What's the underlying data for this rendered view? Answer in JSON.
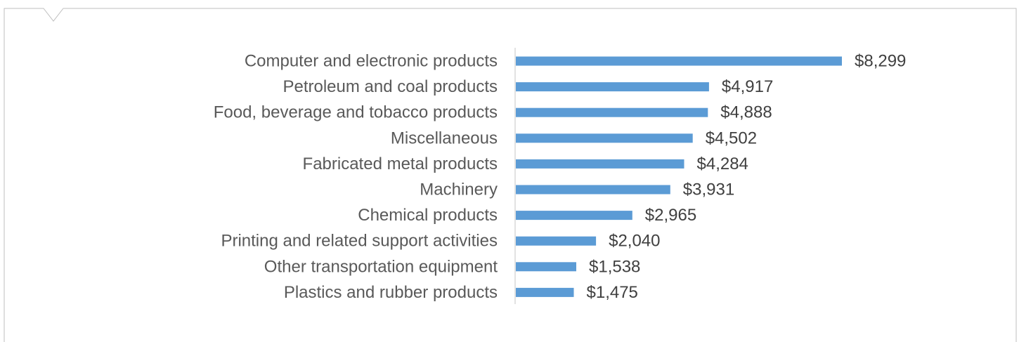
{
  "chart_data": {
    "type": "bar",
    "orientation": "horizontal",
    "categories": [
      "Computer and electronic products",
      "Petroleum and coal products",
      "Food, beverage and tobacco products",
      "Miscellaneous",
      "Fabricated metal products",
      "Machinery",
      "Chemical products",
      "Printing and related support activities",
      "Other transportation equipment",
      "Plastics and rubber products"
    ],
    "values": [
      8299,
      4917,
      4888,
      4502,
      4284,
      3931,
      2965,
      2040,
      1538,
      1475
    ],
    "value_labels": [
      "$8,299",
      "$4,917",
      "$4,888",
      "$4,502",
      "$4,284",
      "$3,931",
      "$2,965",
      "$2,040",
      "$1,538",
      "$1,475"
    ],
    "title": "",
    "xlabel": "",
    "ylabel": "",
    "xlim": [
      0,
      8299
    ],
    "grid": false,
    "legend": "none",
    "bar_color": "#5B9BD5",
    "axis_color": "#D9D9D9",
    "frame_color": "#BFBFBF"
  }
}
